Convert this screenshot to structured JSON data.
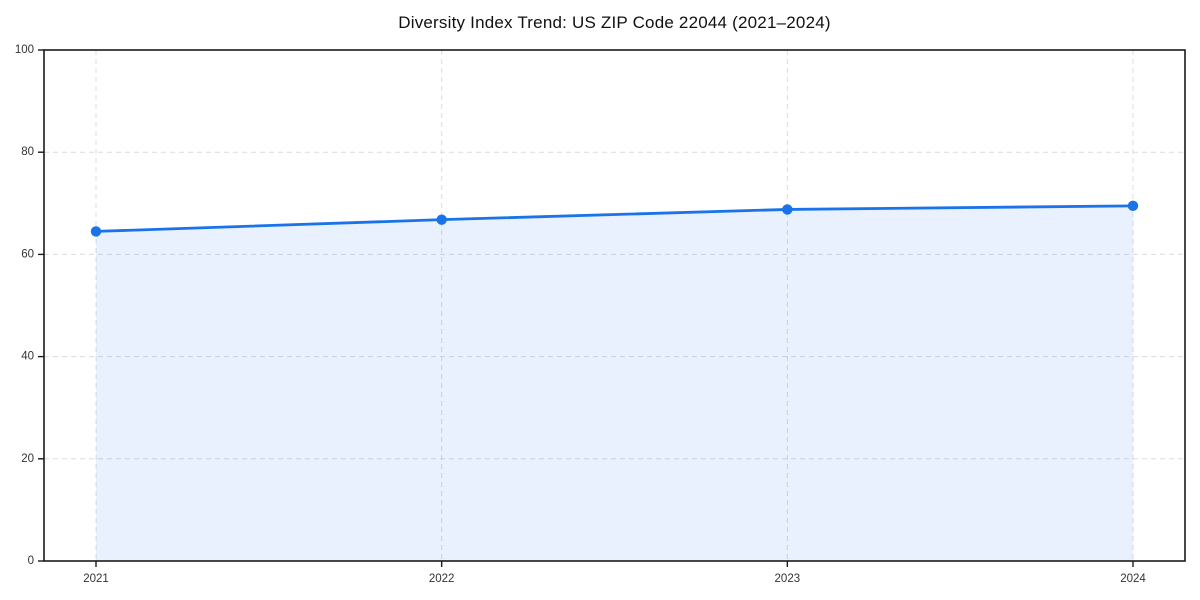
{
  "chart_data": {
    "type": "area",
    "title": "Diversity Index Trend: US ZIP Code 22044 (2021–2024)",
    "categories": [
      "2021",
      "2022",
      "2023",
      "2024"
    ],
    "series": [
      {
        "name": "Diversity Index",
        "values": [
          64.5,
          66.8,
          68.8,
          69.5
        ]
      }
    ],
    "xlabel": "",
    "ylabel": "",
    "ylim": [
      0,
      100
    ],
    "yticks": [
      0,
      20,
      40,
      60,
      80,
      100
    ],
    "grid": {
      "style": "dashed",
      "horizontal": true,
      "vertical": true
    },
    "legend": "none",
    "marker": "circle",
    "colors": {
      "line": "#1a73e8",
      "marker": "#1a73e8",
      "fill": "#1a73e8",
      "fill_opacity": 0.1,
      "grid": "#dcdcdc",
      "axis": "#1a1a1a",
      "tick_label": "#333333",
      "title": "#111111"
    }
  }
}
